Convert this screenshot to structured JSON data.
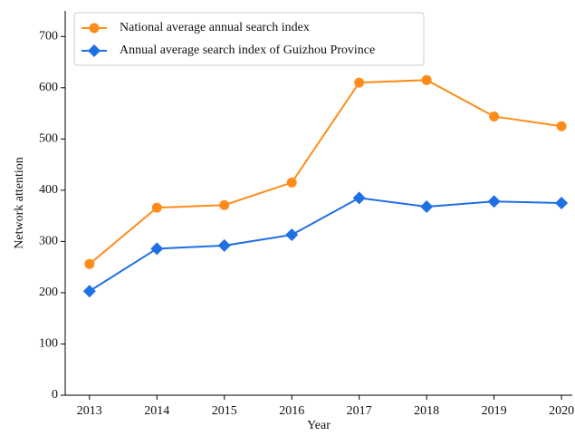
{
  "chart_data": {
    "type": "line",
    "x_label": "Year",
    "y_label": "Network attention",
    "x": [
      2013,
      2014,
      2015,
      2016,
      2017,
      2018,
      2019,
      2020
    ],
    "xlim": [
      2012.64,
      2020.16
    ],
    "xticks": [
      2013,
      2014,
      2015,
      2016,
      2017,
      2018,
      2019,
      2020
    ],
    "ylim": [
      0,
      750
    ],
    "yticks": [
      0,
      100,
      200,
      300,
      400,
      500,
      600,
      700
    ],
    "legend": "upper left",
    "series": [
      {
        "name": "National average annual search index",
        "color": "#ff8c1a",
        "marker": "circle",
        "values": [
          256,
          366,
          371,
          415,
          610,
          615,
          544,
          525
        ]
      },
      {
        "name": "Annual average search index of Guizhou Province",
        "color": "#1f6fe5",
        "marker": "diamond",
        "values": [
          203,
          286,
          292,
          313,
          385,
          368,
          378,
          375
        ]
      }
    ]
  }
}
